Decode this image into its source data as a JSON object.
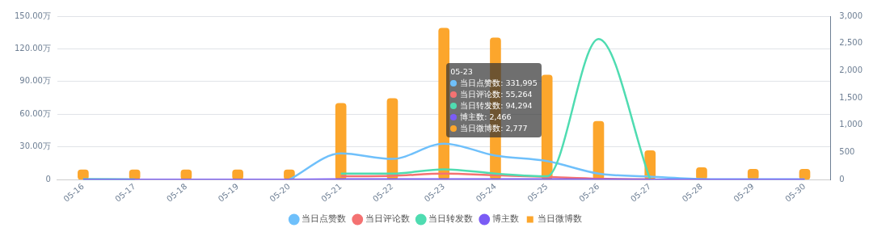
{
  "chart_data": {
    "type": "line",
    "categories": [
      "05-16",
      "05-17",
      "05-18",
      "05-19",
      "05-20",
      "05-21",
      "05-22",
      "05-23",
      "05-24",
      "05-25",
      "05-26",
      "05-27",
      "05-28",
      "05-29",
      "05-30"
    ],
    "series": [
      {
        "name": "当日点赞数",
        "color": "#6fc0fb",
        "values": [
          0.2,
          0.1,
          null,
          null,
          0,
          24,
          19,
          33,
          22,
          17,
          5.5,
          2.7,
          0.5,
          0.2,
          0.2
        ]
      },
      {
        "name": "当日评论数",
        "color": "#f47272",
        "values": [
          null,
          null,
          null,
          null,
          null,
          3,
          3.5,
          5.5,
          4,
          2.5,
          0.8,
          0.2,
          null,
          null,
          null
        ]
      },
      {
        "name": "当日转发数",
        "color": "#4fdcb1",
        "values": [
          0.3,
          0.1,
          null,
          null,
          null,
          5.5,
          5.5,
          9.4,
          5.5,
          3,
          129,
          0.2,
          null,
          null,
          null
        ]
      },
      {
        "name": "博主数",
        "color": "#7b5cf5",
        "values": [
          0,
          0,
          0,
          0,
          0,
          0.2,
          0.2,
          0.2,
          0.2,
          0.2,
          0.1,
          0,
          0,
          0,
          0
        ]
      },
      {
        "name": "当日微博数",
        "type": "bar",
        "color": "#fca62c",
        "axis": "y2",
        "values": [
          180,
          180,
          180,
          180,
          180,
          1400,
          1490,
          2780,
          2600,
          1920,
          1070,
          530,
          220,
          190,
          190
        ]
      }
    ],
    "ylim": [
      0,
      150
    ],
    "yticks": [
      0,
      {
        "value": 30,
        "label": "30.00万"
      },
      {
        "value": 60,
        "label": "60.00万"
      },
      {
        "value": 90,
        "label": "90.00万"
      },
      {
        "value": 120,
        "label": "120.00万"
      },
      {
        "value": 150,
        "label": "150.00万"
      }
    ],
    "y2lim": [
      0,
      3000
    ],
    "y2ticks": [
      0,
      {
        "value": 500,
        "label": "500"
      },
      {
        "value": 1000,
        "label": "1,000"
      },
      {
        "value": 1500,
        "label": "1,500"
      },
      {
        "value": 2000,
        "label": "2,000"
      },
      {
        "value": 2500,
        "label": "2,500"
      },
      {
        "value": 3000,
        "label": "3,000"
      }
    ],
    "annotations": [
      "05-23",
      "当日点赞数: 331,995",
      "当日评论数: 55,264",
      "当日转发数: 94,294",
      "博主数: 2,466",
      "当日微博数: 2,777"
    ],
    "grid": "y",
    "legend": "bottom",
    "marker": "none",
    "line_style": "solid"
  }
}
